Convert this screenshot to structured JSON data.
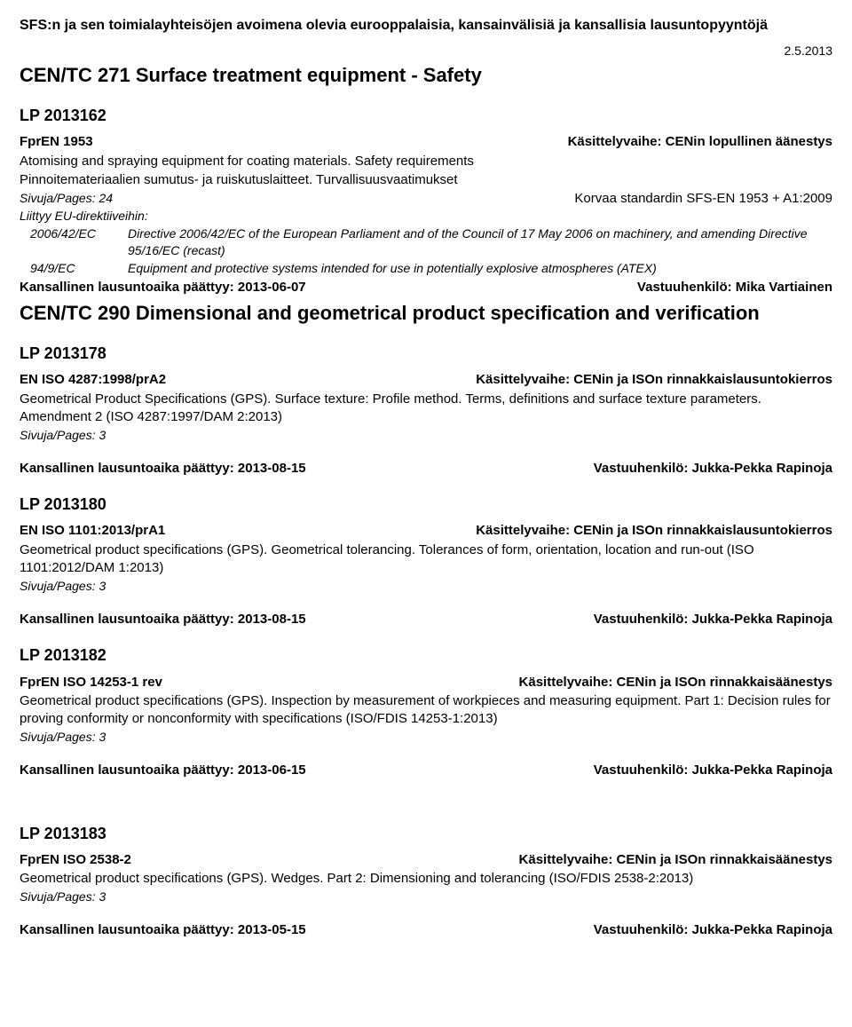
{
  "header": "SFS:n ja sen toimialayhteisöjen avoimena olevia eurooppalaisia, kansainvälisiä ja kansallisia lausuntopyyntöjä",
  "date": "2.5.2013",
  "sections": [
    {
      "title": "CEN/TC 271 Surface treatment equipment - Safety",
      "items": [
        {
          "lp": "LP 2013162",
          "code": "FprEN 1953",
          "phase": "Käsittelyvaihe: CENin lopullinen äänestys",
          "desc_lines": [
            "Atomising and spraying equipment for coating materials. Safety requirements",
            "Pinnoitemateriaalien sumutus- ja ruiskutuslaitteet. Turvallisuusvaatimukset"
          ],
          "pages": "Sivuja/Pages: 24",
          "replaces": "Korvaa standardin SFS-EN 1953 + A1:2009",
          "directives_header": "Liittyy EU-direktiiveihin:",
          "directives": [
            {
              "code": "2006/42/EC",
              "text": "Directive 2006/42/EC of the European Parliament and of the Council of 17 May 2006 on machinery, and amending Directive 95/16/EC (recast)"
            },
            {
              "code": "94/9/EC",
              "text": "Equipment and protective systems intended for use in potentially explosive atmospheres (ATEX)"
            }
          ],
          "deadline": "Kansallinen lausuntoaika päättyy: 2013-06-07",
          "responsible": "Vastuuhenkilö: Mika Vartiainen"
        }
      ]
    },
    {
      "title": "CEN/TC 290 Dimensional and geometrical product specification and verification",
      "items": [
        {
          "lp": "LP 2013178",
          "code": "EN ISO 4287:1998/prA2",
          "phase": "Käsittelyvaihe: CENin ja ISOn rinnakkaislausuntokierros",
          "desc_lines": [
            "Geometrical Product Specifications (GPS). Surface texture: Profile method. Terms, definitions and surface texture parameters. Amendment 2 (ISO 4287:1997/DAM 2:2013)"
          ],
          "pages": "Sivuja/Pages: 3",
          "deadline": "Kansallinen lausuntoaika päättyy: 2013-08-15",
          "responsible": "Vastuuhenkilö: Jukka-Pekka Rapinoja"
        },
        {
          "lp": "LP 2013180",
          "code": "EN ISO 1101:2013/prA1",
          "phase": "Käsittelyvaihe: CENin ja ISOn rinnakkaislausuntokierros",
          "desc_lines": [
            "Geometrical product specifications (GPS). Geometrical tolerancing. Tolerances of form, orientation, location and run-out (ISO 1101:2012/DAM 1:2013)"
          ],
          "pages": "Sivuja/Pages: 3",
          "deadline": "Kansallinen lausuntoaika päättyy: 2013-08-15",
          "responsible": "Vastuuhenkilö: Jukka-Pekka Rapinoja"
        },
        {
          "lp": "LP 2013182",
          "code": "FprEN ISO 14253-1 rev",
          "phase": "Käsittelyvaihe: CENin ja ISOn rinnakkaisäänestys",
          "desc_lines": [
            "Geometrical product specifications (GPS). Inspection by measurement of workpieces and measuring equipment. Part 1: Decision rules for proving conformity or nonconformity with specifications (ISO/FDIS 14253-1:2013)"
          ],
          "pages": "Sivuja/Pages: 3",
          "deadline": "Kansallinen lausuntoaika päättyy: 2013-06-15",
          "responsible": "Vastuuhenkilö: Jukka-Pekka Rapinoja"
        },
        {
          "lp": "LP 2013183",
          "code": "FprEN ISO 2538-2",
          "phase": "Käsittelyvaihe: CENin ja ISOn rinnakkaisäänestys",
          "desc_lines": [
            "Geometrical product specifications (GPS). Wedges. Part 2: Dimensioning and tolerancing (ISO/FDIS 2538-2:2013)"
          ],
          "pages": "Sivuja/Pages: 3",
          "deadline": "Kansallinen lausuntoaika päättyy: 2013-05-15",
          "responsible": "Vastuuhenkilö: Jukka-Pekka Rapinoja"
        }
      ]
    }
  ]
}
